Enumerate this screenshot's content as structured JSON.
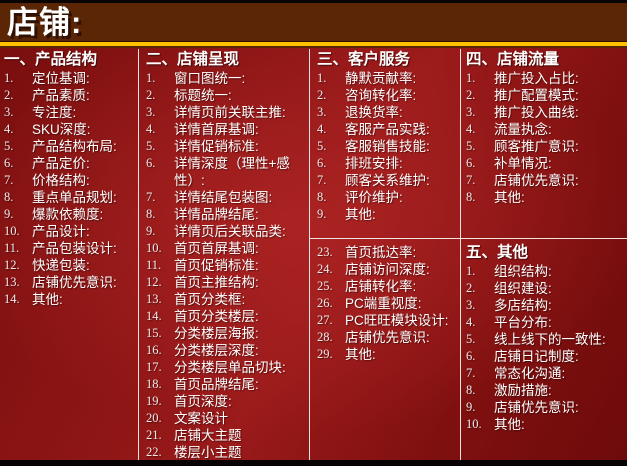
{
  "title": "店铺:",
  "colors": {
    "header_brown": "#5B2606",
    "gold": "#FFC000",
    "background_red": "#8C1414",
    "divider": "#F2F0EE",
    "text": "#FFFFFF"
  },
  "columns": [
    {
      "name": "product-structure",
      "blocks": [
        {
          "heading": "一、产品结构",
          "start": 1,
          "items": [
            "定位基调:",
            "产品素质:",
            "专注度:",
            "SKU深度:",
            "产品结构布局:",
            "产品定价:",
            "价格结构:",
            "重点单品规划:",
            "爆款依赖度:",
            "产品设计:",
            "产品包装设计:",
            "快递包装:",
            "店铺优先意识:",
            "其他:"
          ]
        }
      ]
    },
    {
      "name": "shop-presentation",
      "blocks": [
        {
          "heading": "二、店铺呈现",
          "start": 1,
          "items": [
            "窗口图统一:",
            "标题统一:",
            "详情页前关联主推:",
            "详情首屏基调:",
            "详情促销标准:",
            "详情深度（理性+感性）:",
            "详情结尾包装图:",
            "详情品牌结尾:",
            "详情页后关联品类:",
            "首页首屏基调:",
            "首页促销标准:",
            "首页主推结构:",
            "首页分类框:",
            "首页分类楼层:",
            "分类楼层海报:",
            "分类楼层深度:",
            "分类楼层单品切块:",
            "首页品牌结尾:",
            "首页深度:",
            "文案设计",
            "店铺大主题",
            "楼层小主题"
          ]
        }
      ]
    },
    {
      "name": "customer-service",
      "blocks": [
        {
          "heading": "三、客户服务",
          "start": 1,
          "items": [
            "静默贡献率:",
            "咨询转化率:",
            "退换货率:",
            "客服产品实践:",
            "客服销售技能:",
            "排班安排:",
            "顾客关系维护:",
            "评价维护:",
            "其他:"
          ]
        },
        {
          "heading": null,
          "start": 23,
          "items": [
            "首页抵达率:",
            "店铺访问深度:",
            "店铺转化率:",
            "PC端重视度:",
            "PC旺旺模块设计:",
            "店铺优先意识:",
            "其他:"
          ]
        }
      ]
    },
    {
      "name": "shop-traffic-and-others",
      "blocks": [
        {
          "heading": "四、店铺流量",
          "start": 1,
          "items": [
            "推广投入占比:",
            "推广配置模式:",
            "推广投入曲线:",
            "流量执念:",
            "顾客推广意识:",
            "补单情况:",
            "店铺优先意识:",
            "其他:"
          ]
        },
        {
          "heading": "五、其他",
          "start": 1,
          "items": [
            "组织结构:",
            "组织建设:",
            "多店结构:",
            "平台分布:",
            "线上线下的一致性:",
            "店铺日记制度:",
            "常态化沟通:",
            "激励措施:",
            "店铺优先意识:",
            "其他:"
          ]
        }
      ]
    }
  ]
}
